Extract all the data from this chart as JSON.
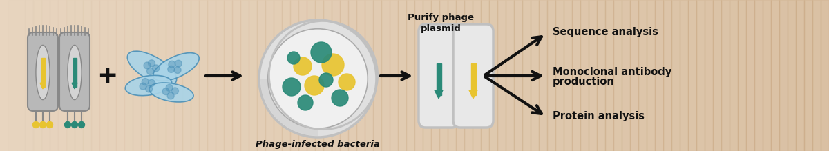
{
  "bg_color": "#e8d5bf",
  "bg_color_right": "#c9a882",
  "phage_body_color": "#b8b8b8",
  "phage_border_color": "#888888",
  "phage_inner_color": "#d4d4d4",
  "yellow_color": "#e8c430",
  "teal_color": "#2a8a78",
  "bacteria_fill": "#a8d4e8",
  "bacteria_border": "#4a90b8",
  "plate_outer": "#c0c0c0",
  "plate_inner": "#e0e0e0",
  "plate_center": "#f0f0f0",
  "plate_sector": "#d0d0d0",
  "plasmid_body": "#c0c0c0",
  "plasmid_fill": "#e8e8e8",
  "arrow_color": "#111111",
  "text_color": "#111111",
  "label_phage_infected": "Phage-infected bacteria",
  "label_purify_line1": "Purify phage",
  "label_purify_line2": "plasmid",
  "label_seq": "Sequence analysis",
  "label_mono_line1": "Monoclonal antibody",
  "label_mono_line2": "production",
  "label_protein": "Protein analysis",
  "figsize": [
    12.0,
    2.19
  ],
  "dpi": 100
}
